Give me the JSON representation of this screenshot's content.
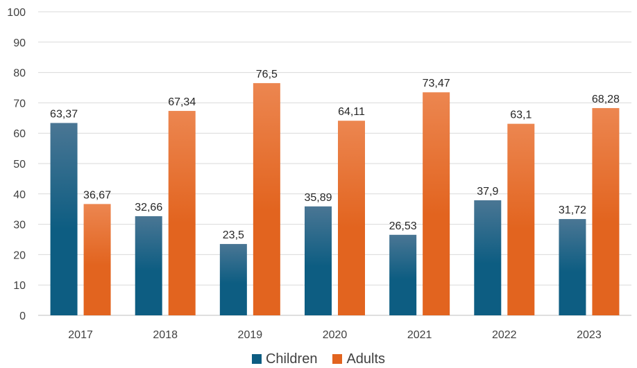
{
  "chart_data": {
    "type": "bar",
    "categories": [
      "2017",
      "2018",
      "2019",
      "2020",
      "2021",
      "2022",
      "2023"
    ],
    "series": [
      {
        "name": "Children",
        "values": [
          63.37,
          32.66,
          23.5,
          35.89,
          26.53,
          37.9,
          31.72
        ],
        "labels": [
          "63,37",
          "32,66",
          "23,5",
          "35,89",
          "26,53",
          "37,9",
          "31,72"
        ],
        "color": "#0d5d82",
        "color_top": "#4a7694"
      },
      {
        "name": "Adults",
        "values": [
          36.67,
          67.34,
          76.5,
          64.11,
          73.47,
          63.1,
          68.28
        ],
        "labels": [
          "36,67",
          "67,34",
          "76,5",
          "64,11",
          "73,47",
          "63,1",
          "68,28"
        ],
        "color": "#e2641f",
        "color_top": "#ec8650"
      }
    ],
    "yticks": [
      "0",
      "10",
      "20",
      "30",
      "40",
      "50",
      "60",
      "70",
      "80",
      "90",
      "100"
    ],
    "ylim": [
      0,
      100
    ],
    "grid": true,
    "legend_position": "bottom"
  }
}
